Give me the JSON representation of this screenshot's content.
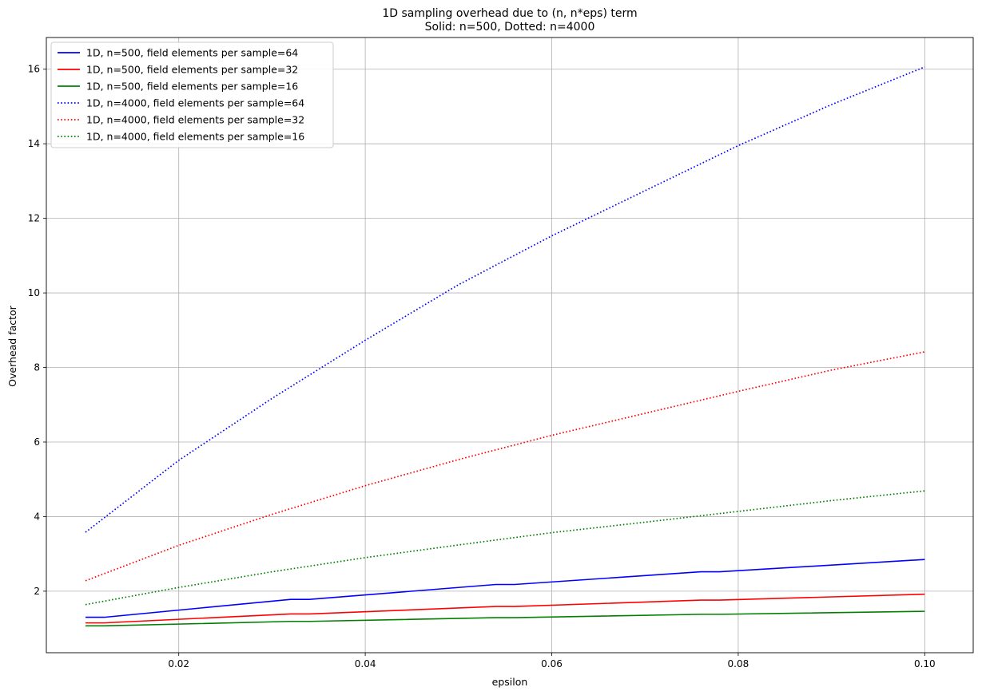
{
  "chart_data": {
    "type": "line",
    "title": "1D sampling overhead due to (n, n*eps) term",
    "subtitle": "Solid: n=500, Dotted: n=4000",
    "xlabel": "epsilon",
    "ylabel": "Overhead factor",
    "xlim": [
      0.0058,
      0.1052
    ],
    "ylim": [
      0.35,
      16.85
    ],
    "xticks": [
      0.02,
      0.04,
      0.06,
      0.08,
      0.1
    ],
    "xtick_labels": [
      "0.02",
      "0.04",
      "0.06",
      "0.08",
      "0.10"
    ],
    "yticks": [
      2,
      4,
      6,
      8,
      10,
      12,
      14,
      16
    ],
    "ytick_labels": [
      "2",
      "4",
      "6",
      "8",
      "10",
      "12",
      "14",
      "16"
    ],
    "grid": true,
    "legend_position": "top-left",
    "series": [
      {
        "name": "1D, n=500, field elements per sample=64",
        "color": "#0000ff",
        "style": "solid",
        "x": [
          0.01,
          0.012,
          0.032,
          0.034,
          0.054,
          0.056,
          0.076,
          0.078,
          0.1
        ],
        "y": [
          1.3,
          1.3,
          1.78,
          1.78,
          2.18,
          2.18,
          2.52,
          2.52,
          2.85
        ]
      },
      {
        "name": "1D, n=500, field elements per sample=32",
        "color": "#ff0000",
        "style": "solid",
        "x": [
          0.01,
          0.012,
          0.032,
          0.034,
          0.054,
          0.056,
          0.076,
          0.078,
          0.1
        ],
        "y": [
          1.15,
          1.15,
          1.39,
          1.39,
          1.59,
          1.59,
          1.76,
          1.76,
          1.92
        ]
      },
      {
        "name": "1D, n=500, field elements per sample=16",
        "color": "#008000",
        "style": "solid",
        "x": [
          0.01,
          0.012,
          0.032,
          0.034,
          0.054,
          0.056,
          0.076,
          0.078,
          0.1
        ],
        "y": [
          1.07,
          1.07,
          1.19,
          1.19,
          1.29,
          1.29,
          1.38,
          1.38,
          1.46
        ]
      },
      {
        "name": "1D, n=4000, field elements per sample=64",
        "color": "#0000ff",
        "style": "dotted",
        "x": [
          0.01,
          0.02,
          0.03,
          0.04,
          0.05,
          0.06,
          0.07,
          0.08,
          0.09,
          0.1
        ],
        "y": [
          3.58,
          5.51,
          7.17,
          8.73,
          10.22,
          11.53,
          12.74,
          13.95,
          15.05,
          16.06
        ]
      },
      {
        "name": "1D, n=4000, field elements per sample=32",
        "color": "#ff0000",
        "style": "dotted",
        "x": [
          0.01,
          0.02,
          0.03,
          0.04,
          0.05,
          0.06,
          0.07,
          0.08,
          0.09,
          0.1
        ],
        "y": [
          2.28,
          3.23,
          4.06,
          4.83,
          5.53,
          6.18,
          6.77,
          7.36,
          7.93,
          8.42
        ]
      },
      {
        "name": "1D, n=4000, field elements per sample=16",
        "color": "#008000",
        "style": "dotted",
        "x": [
          0.01,
          0.02,
          0.03,
          0.04,
          0.05,
          0.06,
          0.07,
          0.08,
          0.09,
          0.1
        ],
        "y": [
          1.64,
          2.1,
          2.52,
          2.9,
          3.24,
          3.57,
          3.85,
          4.14,
          4.43,
          4.69
        ]
      }
    ]
  }
}
